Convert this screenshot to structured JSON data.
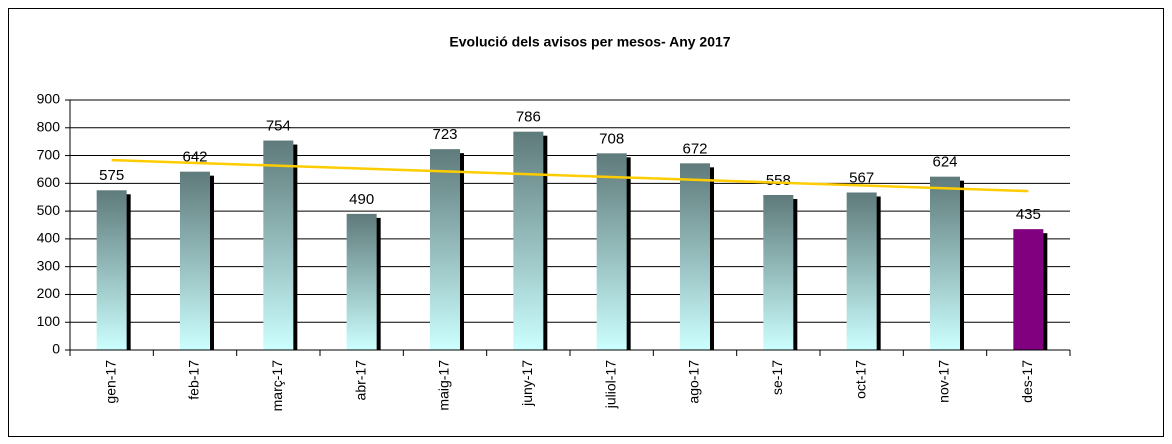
{
  "chart_data": {
    "type": "bar",
    "title": "Evolució dels avisos per mesos- Any 2017",
    "categories": [
      "gen-17",
      "feb-17",
      "març-17",
      "abr-17",
      "maig-17",
      "juny-17",
      "juliol-17",
      "ago-17",
      "se-17",
      "oct-17",
      "nov-17",
      "des-17"
    ],
    "values": [
      575,
      642,
      754,
      490,
      723,
      786,
      708,
      672,
      558,
      567,
      624,
      435
    ],
    "colors": [
      "#5f7a7a",
      "#5f7a7a",
      "#5f7a7a",
      "#5f7a7a",
      "#5f7a7a",
      "#5f7a7a",
      "#5f7a7a",
      "#5f7a7a",
      "#5f7a7a",
      "#5f7a7a",
      "#5f7a7a",
      "#800080"
    ],
    "gradient_end": "#ccffff",
    "gradient": [
      true,
      true,
      true,
      true,
      true,
      true,
      true,
      true,
      true,
      true,
      true,
      false
    ],
    "shadow_color": "#000000",
    "trendline": true,
    "trendline_color": "#ffcc00",
    "ylim": [
      0,
      900
    ],
    "yticks": [
      0,
      100,
      200,
      300,
      400,
      500,
      600,
      700,
      800,
      900
    ],
    "grid": true
  }
}
